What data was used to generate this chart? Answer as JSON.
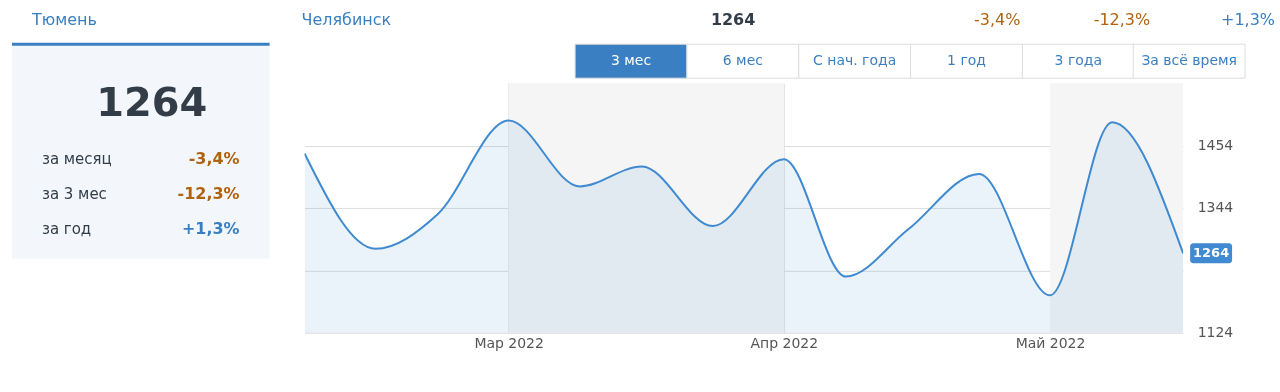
{
  "chart_data": {
    "type": "area",
    "x": [
      "2022-02-06",
      "2022-02-14",
      "2022-02-21",
      "2022-03-01",
      "2022-03-09",
      "2022-03-16",
      "2022-03-24",
      "2022-04-01",
      "2022-04-08",
      "2022-04-15",
      "2022-04-23",
      "2022-05-01",
      "2022-05-08",
      "2022-05-16"
    ],
    "series": [
      {
        "color": "#3f8ad0",
        "values": [
          1440,
          1272,
          1333,
          1498,
          1382,
          1417,
          1312,
          1430,
          1223,
          1306,
          1404,
          1190,
          1495,
          1264
        ],
        "value_labels": [
          null,
          null,
          null,
          null,
          null,
          null,
          null,
          null,
          null,
          null,
          null,
          null,
          null,
          "1264"
        ]
      }
    ],
    "xlim": [
      "2022-02-06",
      "2022-05-16"
    ],
    "xticks": [
      {
        "value": "2022-03-01",
        "label": "Мар 2022"
      },
      {
        "value": "2022-04-01",
        "label": "Апр 2022"
      },
      {
        "value": "2022-05-01",
        "label": "Май 2022"
      }
    ],
    "ylim": [
      1124,
      1564
    ],
    "yticks": [
      1124,
      {
        "value": 1234,
        "label": null
      },
      1344,
      1454
    ],
    "bands": [
      {
        "axis": "x",
        "from": "2022-03-01",
        "to": "2022-04-01",
        "color": "#f5f5f5"
      },
      {
        "axis": "x",
        "from": "2022-05-01",
        "to": "2022-05-16",
        "color": "#f5f5f5"
      }
    ],
    "grid": true,
    "marker": "none",
    "annotations": [
      "Тюмень",
      "Челябинск",
      "1264",
      "-3,4%",
      "-12,3%",
      "+1,3%",
      "3 мес",
      "6 мес",
      "С нач. года",
      "1 год",
      "3 года",
      "За всё время",
      "1264",
      "за месяц",
      "-3,4%",
      "за 3 мес",
      "-12,3%",
      "за год",
      "+1,3%"
    ]
  }
}
